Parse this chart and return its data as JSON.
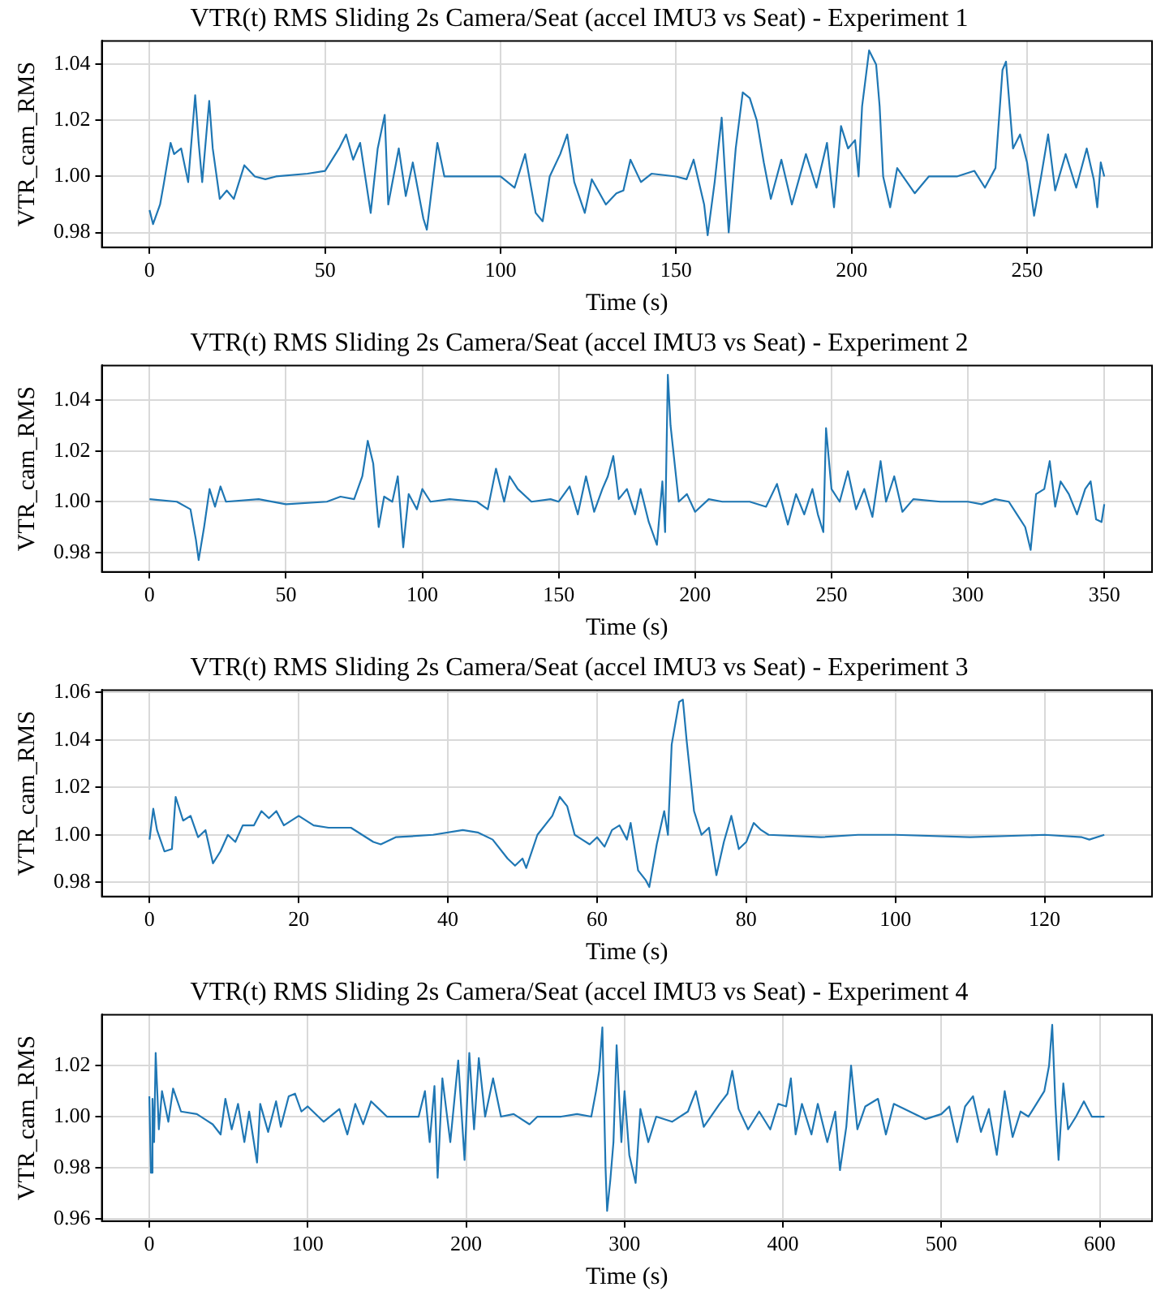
{
  "chart_data": [
    {
      "type": "line",
      "title": "VTR(t) RMS Sliding 2s Camera/Seat (accel IMU3 vs Seat) - Experiment 1",
      "xlabel": "Time (s)",
      "ylabel": "VTR_cam_RMS",
      "grid": true,
      "legend": false,
      "marker": "none",
      "line_style": "solid",
      "xlim": [
        -13.6,
        285.6
      ],
      "xticks": [
        0,
        50,
        100,
        150,
        200,
        250
      ],
      "ylim": [
        0.9747,
        1.0484
      ],
      "yticks": [
        {
          "value": 0.98,
          "label": "0.98"
        },
        {
          "value": 1.0,
          "label": "1.00"
        },
        {
          "value": 1.02,
          "label": "1.02"
        },
        {
          "value": 1.04,
          "label": "1.04"
        }
      ],
      "series": [
        {
          "color": "#1f77b4",
          "x": [
            0,
            1,
            3,
            4,
            6,
            7,
            9,
            11,
            13,
            14,
            15,
            17,
            18,
            20,
            22,
            24,
            27,
            30,
            33,
            36,
            45,
            50,
            54,
            56,
            58,
            60,
            63,
            65,
            67,
            68,
            71,
            73,
            75,
            78,
            79,
            82,
            84,
            90,
            100,
            104,
            107,
            110,
            112,
            114,
            117,
            119,
            121,
            124,
            126,
            130,
            133,
            135,
            137,
            140,
            143,
            150,
            153,
            155,
            158,
            159,
            161,
            163,
            164,
            165,
            167,
            169,
            171,
            173,
            175,
            177,
            180,
            183,
            187,
            190,
            193,
            195,
            197,
            199,
            201,
            202,
            203,
            205,
            207,
            208,
            209,
            211,
            213,
            218,
            222,
            230,
            235,
            238,
            241,
            243,
            244,
            246,
            248,
            250,
            252,
            254,
            256,
            258,
            261,
            264,
            267,
            269,
            270,
            271,
            272
          ],
          "values": [
            0.988,
            0.983,
            0.99,
            0.997,
            1.012,
            1.008,
            1.01,
            0.998,
            1.029,
            1.012,
            0.998,
            1.027,
            1.01,
            0.992,
            0.995,
            0.992,
            1.004,
            1.0,
            0.999,
            1.0,
            1.001,
            1.002,
            1.01,
            1.015,
            1.006,
            1.012,
            0.987,
            1.01,
            1.022,
            0.99,
            1.01,
            0.993,
            1.005,
            0.985,
            0.981,
            1.012,
            1.0,
            1.0,
            1.0,
            0.996,
            1.008,
            0.987,
            0.984,
            1.0,
            1.008,
            1.015,
            0.998,
            0.987,
            0.999,
            0.99,
            0.994,
            0.995,
            1.006,
            0.998,
            1.001,
            1.0,
            0.999,
            1.006,
            0.99,
            0.979,
            0.998,
            1.021,
            1.0,
            0.98,
            1.01,
            1.03,
            1.028,
            1.02,
            1.005,
            0.992,
            1.006,
            0.99,
            1.008,
            0.996,
            1.012,
            0.989,
            1.018,
            1.01,
            1.013,
            1.0,
            1.025,
            1.045,
            1.04,
            1.025,
            1.0,
            0.989,
            1.003,
            0.994,
            1.0,
            1.0,
            1.002,
            0.996,
            1.003,
            1.038,
            1.041,
            1.01,
            1.015,
            1.005,
            0.986,
            1.0,
            1.015,
            0.995,
            1.008,
            0.996,
            1.01,
            0.999,
            0.989,
            1.005,
            1.0
          ]
        }
      ]
    },
    {
      "type": "line",
      "title": "VTR(t) RMS Sliding 2s Camera/Seat (accel IMU3 vs Seat) - Experiment 2",
      "xlabel": "Time (s)",
      "ylabel": "VTR_cam_RMS",
      "grid": true,
      "legend": false,
      "marker": "none",
      "line_style": "solid",
      "xlim": [
        -17.5,
        367.5
      ],
      "xticks": [
        0,
        50,
        100,
        150,
        200,
        250,
        300,
        350
      ],
      "ylim": [
        0.9723,
        1.0537
      ],
      "yticks": [
        {
          "value": 0.98,
          "label": "0.98"
        },
        {
          "value": 1.0,
          "label": "1.00"
        },
        {
          "value": 1.02,
          "label": "1.02"
        },
        {
          "value": 1.04,
          "label": "1.04"
        }
      ],
      "series": [
        {
          "color": "#1f77b4",
          "x": [
            0,
            10,
            15,
            17,
            18,
            20,
            22,
            24,
            26,
            28,
            40,
            50,
            65,
            70,
            75,
            78,
            80,
            82,
            84,
            86,
            89,
            91,
            93,
            95,
            98,
            100,
            103,
            110,
            120,
            124,
            127,
            130,
            132,
            135,
            140,
            147,
            150,
            154,
            157,
            160,
            163,
            166,
            168,
            170,
            172,
            175,
            178,
            180,
            183,
            186,
            188,
            189,
            190,
            191,
            192,
            194,
            197,
            200,
            205,
            210,
            220,
            226,
            230,
            234,
            237,
            240,
            243,
            245,
            247,
            248,
            250,
            253,
            256,
            259,
            262,
            265,
            268,
            270,
            273,
            276,
            280,
            290,
            300,
            305,
            310,
            315,
            318,
            321,
            323,
            325,
            328,
            330,
            332,
            334,
            337,
            340,
            343,
            345,
            347,
            349,
            350
          ],
          "values": [
            1.001,
            1.0,
            0.997,
            0.985,
            0.977,
            0.99,
            1.005,
            0.998,
            1.006,
            1.0,
            1.001,
            0.999,
            1.0,
            1.002,
            1.001,
            1.01,
            1.024,
            1.015,
            0.99,
            1.002,
            1.0,
            1.01,
            0.982,
            1.003,
            0.997,
            1.005,
            1.0,
            1.001,
            1.0,
            0.997,
            1.013,
            1.0,
            1.01,
            1.005,
            1.0,
            1.001,
            1.0,
            1.006,
            0.995,
            1.01,
            0.996,
            1.005,
            1.01,
            1.018,
            1.001,
            1.005,
            0.995,
            1.005,
            0.992,
            0.983,
            1.008,
            0.988,
            1.05,
            1.03,
            1.02,
            1.0,
            1.003,
            0.996,
            1.001,
            1.0,
            1.0,
            0.998,
            1.007,
            0.991,
            1.003,
            0.995,
            1.005,
            0.995,
            0.988,
            1.029,
            1.005,
            1.0,
            1.012,
            0.997,
            1.005,
            0.994,
            1.016,
            1.0,
            1.01,
            0.996,
            1.001,
            1.0,
            1.0,
            0.999,
            1.001,
            1.0,
            0.995,
            0.99,
            0.981,
            1.003,
            1.005,
            1.016,
            0.998,
            1.008,
            1.003,
            0.995,
            1.005,
            1.008,
            0.993,
            0.992,
            0.999
          ]
        }
      ]
    },
    {
      "type": "line",
      "title": "VTR(t) RMS Sliding 2s Camera/Seat (accel IMU3 vs Seat) - Experiment 3",
      "xlabel": "Time (s)",
      "ylabel": "VTR_cam_RMS",
      "grid": true,
      "legend": false,
      "marker": "none",
      "line_style": "solid",
      "xlim": [
        -6.4,
        134.4
      ],
      "xticks": [
        0,
        20,
        40,
        60,
        80,
        100,
        120
      ],
      "ylim": [
        0.974,
        1.061
      ],
      "yticks": [
        {
          "value": 0.98,
          "label": "0.98"
        },
        {
          "value": 1.0,
          "label": "1.00"
        },
        {
          "value": 1.02,
          "label": "1.02"
        },
        {
          "value": 1.04,
          "label": "1.04"
        },
        {
          "value": 1.06,
          "label": "1.06"
        }
      ],
      "series": [
        {
          "color": "#1f77b4",
          "x": [
            0,
            0.5,
            1,
            2,
            3,
            3.5,
            4.5,
            5.5,
            6.5,
            7.5,
            8.5,
            9.5,
            10.5,
            11.5,
            12.5,
            14,
            15,
            16,
            17,
            18,
            20,
            22,
            24,
            27,
            30,
            31,
            33,
            38,
            42,
            44,
            46,
            48,
            49,
            50,
            50.5,
            52,
            54,
            55,
            56,
            57,
            58,
            59,
            60,
            61,
            62,
            63,
            64,
            64.5,
            65.5,
            66.5,
            67,
            68,
            69,
            69.5,
            70,
            71,
            71.5,
            72,
            73,
            74,
            75,
            76,
            77,
            78,
            79,
            80,
            81,
            82,
            83,
            90,
            95,
            100,
            110,
            120,
            125,
            126,
            128
          ],
          "values": [
            0.998,
            1.011,
            1.002,
            0.993,
            0.994,
            1.016,
            1.006,
            1.008,
            0.999,
            1.002,
            0.988,
            0.993,
            1.0,
            0.997,
            1.004,
            1.004,
            1.01,
            1.007,
            1.01,
            1.004,
            1.008,
            1.004,
            1.003,
            1.003,
            0.997,
            0.996,
            0.999,
            1.0,
            1.002,
            1.001,
            0.998,
            0.99,
            0.987,
            0.99,
            0.986,
            1.0,
            1.008,
            1.016,
            1.012,
            1.0,
            0.998,
            0.996,
            0.999,
            0.995,
            1.002,
            1.004,
            0.998,
            1.005,
            0.985,
            0.981,
            0.978,
            0.996,
            1.01,
            1.0,
            1.038,
            1.056,
            1.057,
            1.04,
            1.01,
            1.0,
            1.003,
            0.983,
            0.997,
            1.008,
            0.994,
            0.997,
            1.005,
            1.002,
            1.0,
            0.999,
            1.0,
            1.0,
            0.999,
            1.0,
            0.999,
            0.998,
            1.0
          ]
        }
      ]
    },
    {
      "type": "line",
      "title": "VTR(t) RMS Sliding 2s Camera/Seat (accel IMU3 vs Seat) - Experiment 4",
      "xlabel": "Time (s)",
      "ylabel": "VTR_cam_RMS",
      "grid": true,
      "legend": false,
      "marker": "none",
      "line_style": "solid",
      "xlim": [
        -30,
        633
      ],
      "xticks": [
        0,
        100,
        200,
        300,
        400,
        500,
        600
      ],
      "ylim": [
        0.959,
        1.04
      ],
      "yticks": [
        {
          "value": 0.96,
          "label": "0.96"
        },
        {
          "value": 0.98,
          "label": "0.98"
        },
        {
          "value": 1.0,
          "label": "1.00"
        },
        {
          "value": 1.02,
          "label": "1.02"
        }
      ],
      "series": [
        {
          "color": "#1f77b4",
          "x": [
            0,
            1,
            2,
            3,
            4,
            6,
            8,
            12,
            15,
            20,
            30,
            40,
            45,
            48,
            52,
            56,
            60,
            63,
            68,
            70,
            75,
            80,
            83,
            88,
            92,
            96,
            100,
            110,
            120,
            125,
            130,
            135,
            140,
            145,
            150,
            160,
            170,
            174,
            177,
            180,
            182,
            185,
            190,
            195,
            199,
            202,
            205,
            208,
            212,
            217,
            222,
            230,
            240,
            245,
            260,
            270,
            279,
            282,
            284,
            286,
            288,
            289,
            291,
            293,
            295,
            298,
            300,
            303,
            307,
            310,
            315,
            320,
            330,
            340,
            345,
            350,
            360,
            365,
            368,
            372,
            378,
            385,
            392,
            397,
            402,
            405,
            408,
            412,
            418,
            422,
            428,
            433,
            436,
            440,
            443,
            447,
            452,
            460,
            465,
            470,
            480,
            490,
            500,
            505,
            510,
            515,
            520,
            525,
            530,
            535,
            540,
            545,
            550,
            555,
            560,
            565,
            568,
            570,
            572,
            574,
            577,
            580,
            585,
            590,
            595,
            603
          ],
          "values": [
            1.008,
            0.978,
            1.007,
            0.99,
            1.025,
            0.995,
            1.01,
            0.998,
            1.011,
            1.002,
            1.001,
            0.997,
            0.993,
            1.007,
            0.995,
            1.005,
            0.99,
            1.002,
            0.982,
            1.005,
            0.994,
            1.006,
            0.996,
            1.008,
            1.009,
            1.002,
            1.004,
            0.998,
            1.003,
            0.993,
            1.005,
            0.997,
            1.006,
            1.003,
            1.0,
            1.0,
            1.0,
            1.01,
            0.99,
            1.012,
            0.976,
            1.015,
            0.99,
            1.022,
            0.983,
            1.025,
            0.995,
            1.023,
            1.0,
            1.015,
            1.0,
            1.001,
            0.997,
            1.0,
            1.0,
            1.001,
            1.0,
            1.01,
            1.018,
            1.035,
            0.98,
            0.963,
            0.975,
            0.99,
            1.028,
            0.99,
            1.01,
            0.985,
            0.974,
            1.003,
            0.99,
            1.0,
            0.998,
            1.002,
            1.01,
            0.996,
            1.005,
            1.009,
            1.018,
            1.003,
            0.995,
            1.002,
            0.995,
            1.005,
            1.004,
            1.015,
            0.993,
            1.005,
            0.993,
            1.005,
            0.99,
            1.002,
            0.979,
            0.996,
            1.02,
            0.995,
            1.004,
            1.007,
            0.993,
            1.005,
            1.002,
            0.999,
            1.001,
            1.004,
            0.99,
            1.004,
            1.008,
            0.994,
            1.003,
            0.985,
            1.01,
            0.992,
            1.002,
            1.0,
            1.005,
            1.01,
            1.02,
            1.036,
            1.005,
            0.983,
            1.013,
            0.995,
            1.0,
            1.006,
            1.0,
            1.0
          ]
        }
      ]
    }
  ]
}
